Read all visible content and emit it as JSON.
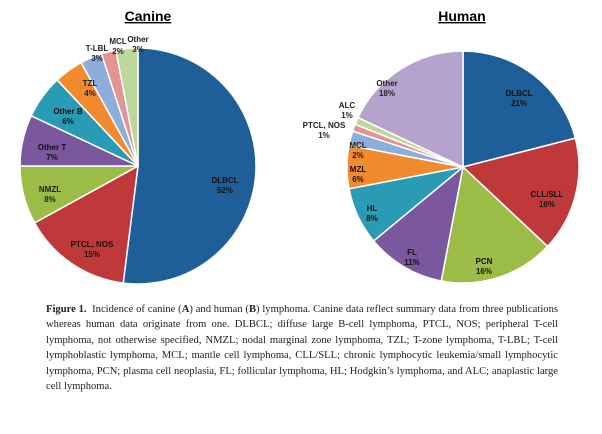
{
  "chart_data": [
    {
      "type": "pie",
      "title": "Canine",
      "slices": [
        {
          "label": "DLBCL",
          "value": 52,
          "value_text": "52%",
          "color": "#1f5f99"
        },
        {
          "label": "PTCL, NOS",
          "value": 15,
          "value_text": "15%",
          "color": "#c0393a"
        },
        {
          "label": "NMZL",
          "value": 8,
          "value_text": "8%",
          "color": "#9bbd48"
        },
        {
          "label": "Other T",
          "value": 7,
          "value_text": "7%",
          "color": "#7b579d"
        },
        {
          "label": "Other B",
          "value": 6,
          "value_text": "6%",
          "color": "#2a9bb5"
        },
        {
          "label": "TZL",
          "value": 4,
          "value_text": "4%",
          "color": "#f28a2e"
        },
        {
          "label": "T-LBL",
          "value": 3,
          "value_text": "3%",
          "color": "#8daed9"
        },
        {
          "label": "MCL",
          "value": 2,
          "value_text": "2%",
          "color": "#e39495"
        },
        {
          "label": "Other",
          "value": 3,
          "value_text": "3%",
          "color": "#bdd89a"
        }
      ]
    },
    {
      "type": "pie",
      "title": "Human",
      "slices": [
        {
          "label": "DLBCL",
          "value": 21,
          "value_text": "21%",
          "color": "#1f5f99"
        },
        {
          "label": "CLL/SLL",
          "value": 16,
          "value_text": "16%",
          "color": "#c0393a"
        },
        {
          "label": "PCN",
          "value": 16,
          "value_text": "16%",
          "color": "#9bbd48"
        },
        {
          "label": "FL",
          "value": 11,
          "value_text": "11%",
          "color": "#7b579d"
        },
        {
          "label": "HL",
          "value": 8,
          "value_text": "8%",
          "color": "#2a9bb5"
        },
        {
          "label": "MZL",
          "value": 6,
          "value_text": "6%",
          "color": "#f28a2e"
        },
        {
          "label": "MCL",
          "value": 2,
          "value_text": "2%",
          "color": "#8daed9"
        },
        {
          "label": "PTCL, NOS",
          "value": 1,
          "value_text": "1%",
          "color": "#e39495"
        },
        {
          "label": "ALC",
          "value": 1,
          "value_text": "1%",
          "color": "#bdd89a"
        },
        {
          "label": "Other",
          "value": 18,
          "value_text": "18%",
          "color": "#b5a3cd"
        }
      ]
    }
  ],
  "caption": {
    "label": "Figure 1.",
    "parts": [
      "Incidence of canine (",
      "A",
      ") and human (",
      "B",
      ") lymphoma.  Canine data reflect summary data from three publications whereas human data originate from one.  DLBCL; diffuse large B-cell lymphoma, PTCL, NOS; peripheral T-cell lymphoma, not otherwise specified, NMZL; nodal marginal zone lymphoma, TZL; T-zone lymphoma, T-LBL; T-cell lymphoblastic lymphoma, MCL; mantle cell lymphoma, CLL/SLL; chronic lymphocytic leukemia/small lymphocytic lymphoma, PCN; plasma cell neoplasia, FL; follicular lymphoma, HL; Hodgkin’s lymphoma, and ALC; anaplastic large cell lymphoma."
    ]
  }
}
